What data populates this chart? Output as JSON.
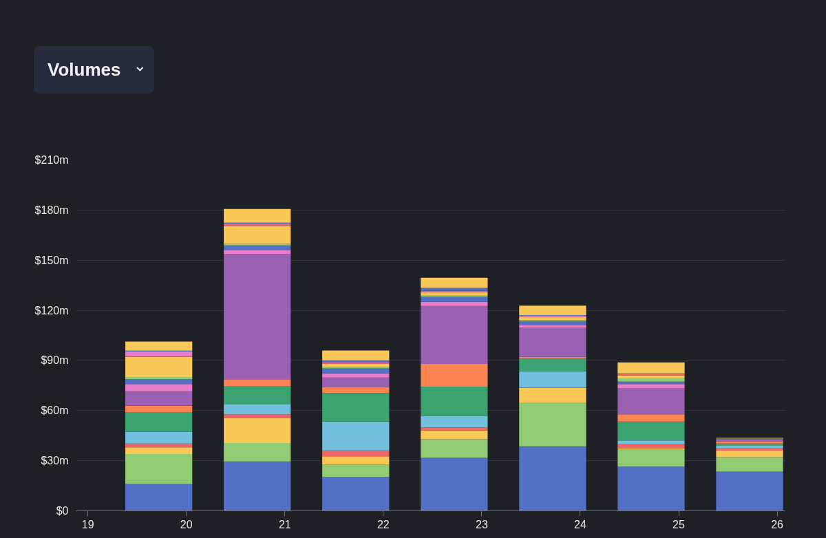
{
  "chart_data": {
    "type": "bar",
    "title": "Volumes",
    "stacked": true,
    "x": [
      19.72,
      20.72,
      21.72,
      22.72,
      23.72,
      24.72,
      25.72
    ],
    "xlim": [
      18.88,
      26.08
    ],
    "xticks": [
      19,
      20,
      21,
      22,
      23,
      24,
      25,
      26
    ],
    "ylim": [
      0,
      210
    ],
    "yticks": [
      {
        "value": 0,
        "label": "$0"
      },
      {
        "value": 30,
        "label": "$30m"
      },
      {
        "value": 60,
        "label": "$60m"
      },
      {
        "value": 90,
        "label": "$90m"
      },
      {
        "value": 120,
        "label": "$120m"
      },
      {
        "value": 150,
        "label": "$150m"
      },
      {
        "value": 180,
        "label": "$180m"
      },
      {
        "value": 210,
        "label": "$210m"
      }
    ],
    "grid": "y",
    "series": [
      {
        "color": "#5470c6",
        "values": [
          16.1,
          29.5,
          20.4,
          31.7,
          38.6,
          26.5,
          23.5
        ]
      },
      {
        "color": "#91cc75",
        "values": [
          17.9,
          11.1,
          7.2,
          11.1,
          26.3,
          10.0,
          8.6
        ]
      },
      {
        "color": "#fac858",
        "values": [
          4.0,
          15.0,
          5.0,
          5.4,
          8.6,
          1.0,
          3.9
        ]
      },
      {
        "color": "#ee6666",
        "values": [
          2.2,
          2.2,
          3.5,
          1.7,
          0.3,
          2.6,
          1.7
        ]
      },
      {
        "color": "#73c0de",
        "values": [
          7.1,
          6.1,
          17.3,
          6.9,
          9.7,
          2.0,
          1.2
        ]
      },
      {
        "color": "#3ba272",
        "values": [
          11.8,
          10.8,
          17.1,
          17.5,
          7.8,
          11.3,
          1.4
        ]
      },
      {
        "color": "#fc8452",
        "values": [
          3.8,
          4.0,
          3.6,
          13.6,
          0.8,
          4.3,
          1.1
        ]
      },
      {
        "color": "#9a60b4",
        "values": [
          8.6,
          75.1,
          5.7,
          34.7,
          17.4,
          15.6,
          1.1
        ]
      },
      {
        "color": "#ea7ccc",
        "values": [
          4.4,
          2.4,
          2.6,
          2.5,
          1.8,
          2.6,
          0.2
        ]
      },
      {
        "color": "#5470c6",
        "values": [
          2.8,
          2.6,
          2.8,
          3.2,
          2.2,
          1.4,
          0.2
        ]
      },
      {
        "color": "#91cc75",
        "values": [
          1.4,
          1.0,
          0.8,
          0.8,
          0.6,
          2.0,
          0.1
        ]
      },
      {
        "color": "#fac858",
        "values": [
          12.1,
          10.7,
          1.9,
          1.7,
          1.8,
          1.8,
          0.1
        ]
      },
      {
        "color": "#ee6666",
        "values": [
          0.7,
          1.1,
          0.6,
          0.4,
          0.4,
          0.6,
          0.1
        ]
      },
      {
        "color": "#ea7ccc",
        "values": [
          2.4,
          0.3,
          0.5,
          0.5,
          0.4,
          0.3,
          0.1
        ]
      },
      {
        "color": "#5470c6",
        "values": [
          0.5,
          0.5,
          1.1,
          1.7,
          0.4,
          0.3,
          0.1
        ]
      },
      {
        "color": "#fac858",
        "values": [
          5.5,
          8.3,
          5.8,
          6.1,
          5.7,
          6.5,
          0.2
        ]
      }
    ]
  }
}
